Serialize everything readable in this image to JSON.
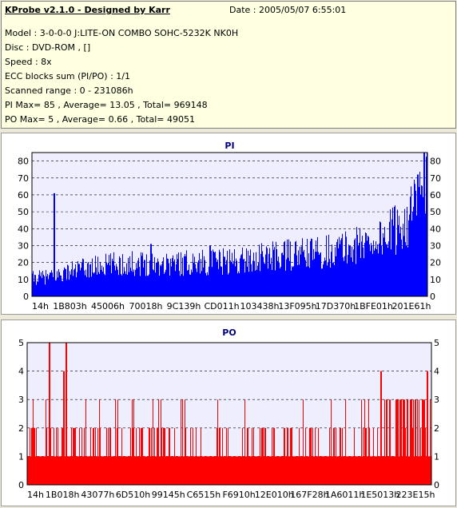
{
  "info": {
    "title": "KProbe v2.1.0 - Designed by Karr",
    "date": "Date : 2005/05/07 6:55:01",
    "lines": [
      "Model : 3-0-0-0 J:LITE-ON COMBO SOHC-5232K NK0H",
      "Disc : DVD-ROM ,  []",
      "Speed : 8x",
      "ECC blocks sum (PI/PO) : 1/1",
      "Scanned range : 0 - 231086h",
      "PI Max= 85 , Average= 13.05 , Total= 969148",
      "PO Max= 5 , Average= 0.66 , Total= 49051"
    ]
  },
  "colors": {
    "pi": "#0000ff",
    "po": "#ff0000",
    "plot_bg": "#eeeeff",
    "grid": "#000000"
  },
  "chart_data": [
    {
      "type": "bar",
      "title": "PI",
      "ylim": [
        0,
        85
      ],
      "yticks": [
        0,
        10,
        20,
        30,
        40,
        50,
        60,
        70,
        80
      ],
      "xticks": [
        "14h",
        "1B803h",
        "45006h",
        "70018h",
        "9C139h",
        "CD011h",
        "103438h",
        "13F095h",
        "17D370h",
        "1BFE01h",
        "201E61h"
      ],
      "grid": "horizontal dashed",
      "profile": [
        [
          0,
          12
        ],
        [
          0.05,
          13
        ],
        [
          0.1,
          17
        ],
        [
          0.2,
          21
        ],
        [
          0.3,
          22
        ],
        [
          0.4,
          22
        ],
        [
          0.5,
          23
        ],
        [
          0.6,
          26
        ],
        [
          0.7,
          28
        ],
        [
          0.8,
          32
        ],
        [
          0.88,
          38
        ],
        [
          0.93,
          46
        ],
        [
          0.97,
          58
        ],
        [
          1.0,
          78
        ]
      ],
      "spikes": [
        [
          0.055,
          61
        ],
        [
          0.3,
          31
        ],
        [
          0.45,
          30
        ],
        [
          0.975,
          72
        ],
        [
          0.99,
          85
        ]
      ]
    },
    {
      "type": "bar",
      "title": "PO",
      "ylim": [
        0,
        5
      ],
      "yticks": [
        0,
        1,
        2,
        3,
        4,
        5
      ],
      "xticks": [
        "14h",
        "1B018h",
        "43077h",
        "6D510h",
        "99145h",
        "C6515h",
        "F6910h",
        "12E010h",
        "167F28h",
        "1A6011h",
        "1E5013h",
        "223E15h"
      ],
      "grid": "horizontal dashed",
      "profile": [
        [
          0,
          1
        ],
        [
          1,
          1
        ]
      ],
      "spikes": [
        [
          0.055,
          5
        ],
        [
          0.095,
          5
        ],
        [
          0.09,
          4
        ],
        [
          0.875,
          4
        ],
        [
          0.99,
          4
        ]
      ]
    }
  ]
}
